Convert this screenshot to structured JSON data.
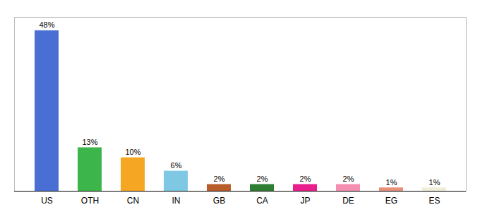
{
  "chart_data": {
    "type": "bar",
    "categories": [
      "US",
      "OTH",
      "CN",
      "IN",
      "GB",
      "CA",
      "JP",
      "DE",
      "EG",
      "ES"
    ],
    "values": [
      48,
      13,
      10,
      6,
      2,
      2,
      2,
      2,
      1,
      1
    ],
    "value_labels": [
      "48%",
      "13%",
      "10%",
      "6%",
      "2%",
      "2%",
      "2%",
      "2%",
      "1%",
      "1%"
    ],
    "colors": [
      "#4A6FD4",
      "#3CB54A",
      "#F5A623",
      "#7EC8E3",
      "#B85C2A",
      "#2E7D32",
      "#E91E8C",
      "#F48FB1",
      "#E8907A",
      "#F0EDD8"
    ],
    "ylim": [
      0,
      52
    ],
    "data_labels": true,
    "tick_labels": "x",
    "grid": false
  }
}
